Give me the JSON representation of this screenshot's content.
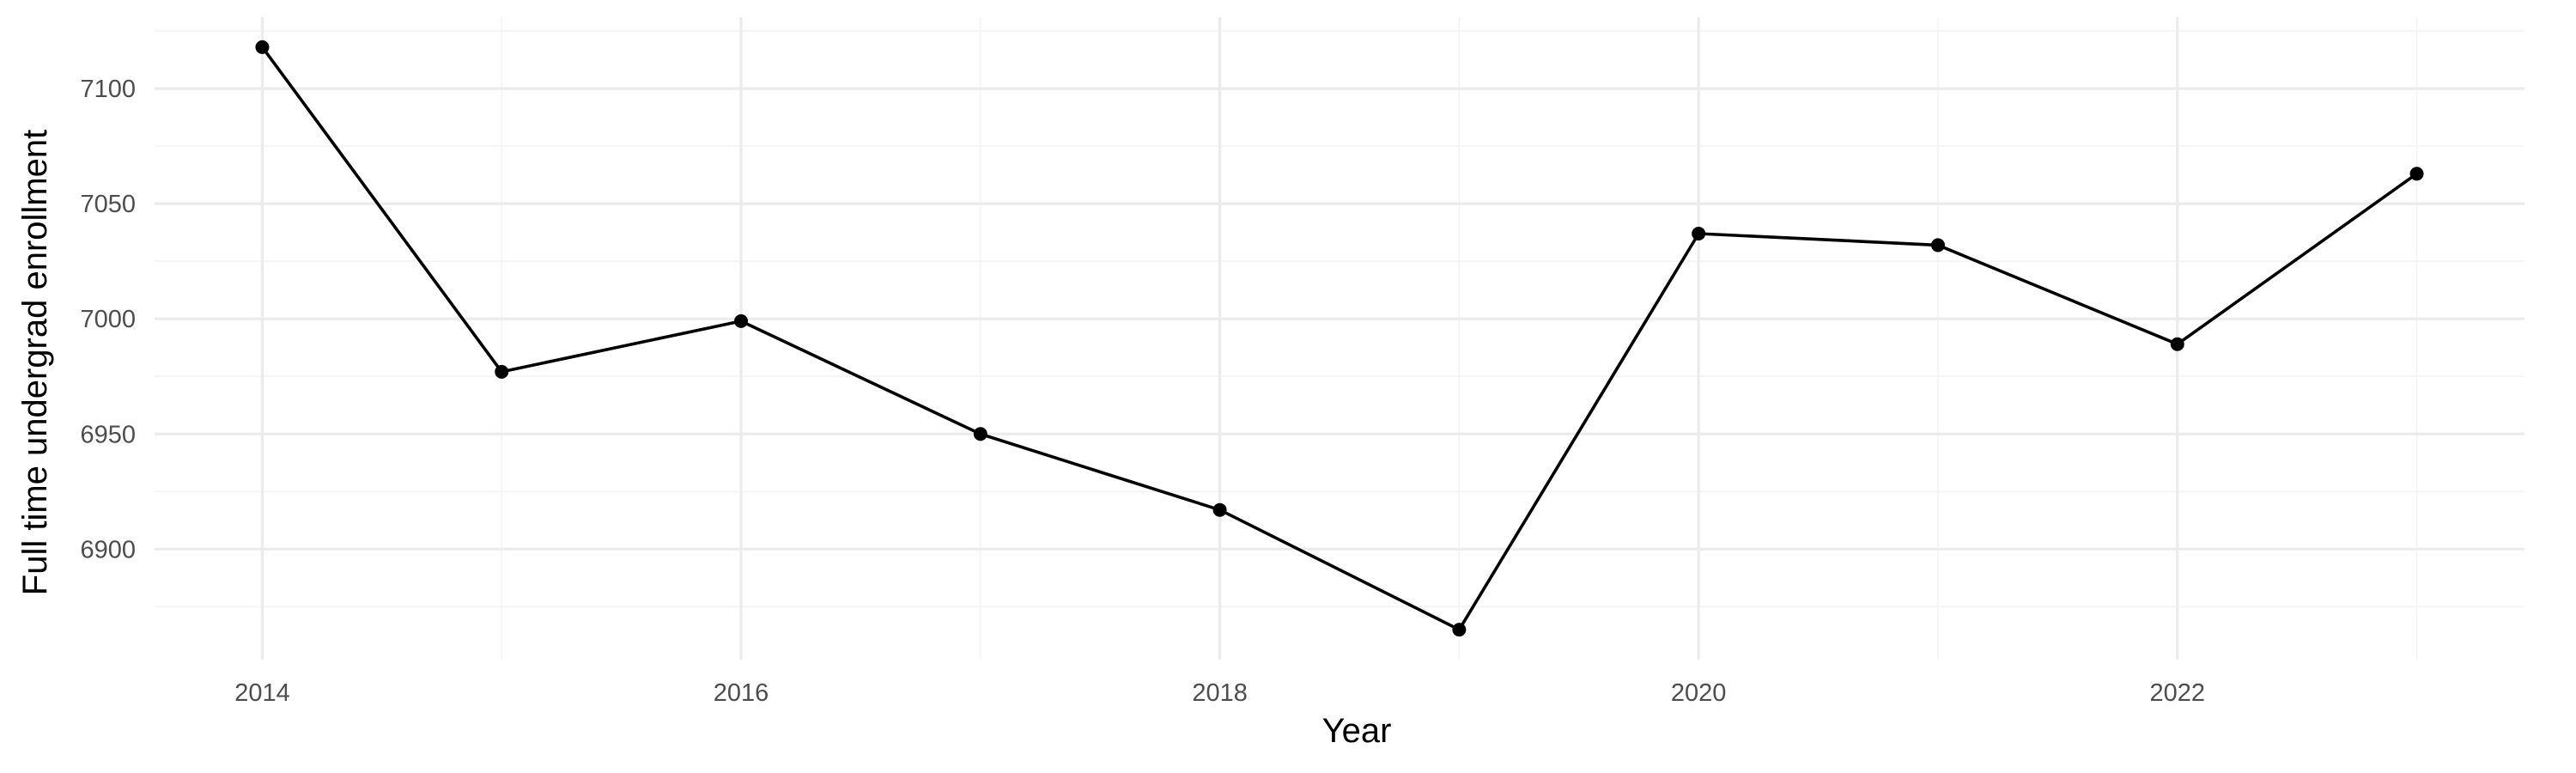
{
  "chart_data": {
    "type": "line",
    "title": "",
    "xlabel": "Year",
    "ylabel": "Full time undergrad enrollment",
    "x": [
      2014,
      2015,
      2016,
      2017,
      2018,
      2019,
      2020,
      2021,
      2022,
      2023
    ],
    "series": [
      {
        "values": [
          7118,
          6977,
          6999,
          6950,
          6917,
          6865,
          7037,
          7032,
          6989,
          7063
        ]
      }
    ],
    "x_ticks": [
      2014,
      2016,
      2018,
      2020,
      2022
    ],
    "x_tick_labels": [
      "2014",
      "2016",
      "2018",
      "2020",
      "2022"
    ],
    "y_ticks": [
      6900,
      6950,
      7000,
      7050,
      7100
    ],
    "y_tick_labels": [
      "6900",
      "6950",
      "7000",
      "7050",
      "7100"
    ],
    "xlim": [
      2013.55,
      2023.45
    ],
    "ylim": [
      6852,
      7131
    ],
    "grid": true,
    "legend": "none",
    "colors": {
      "line": "#000000",
      "point": "#000000",
      "grid": "#ebebeb",
      "background": "#ffffff"
    }
  }
}
